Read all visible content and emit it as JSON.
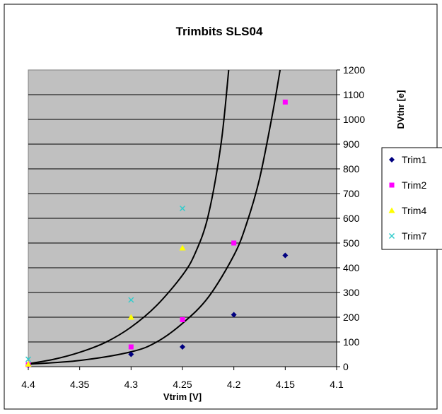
{
  "chart_data": {
    "type": "scatter",
    "title": "Trimbits SLS04",
    "xlabel": "Vtrim [V]",
    "ylabel": "DVthr [e]",
    "x_axis": {
      "reversed": true,
      "range": [
        4.1,
        4.4
      ],
      "ticks": [
        "4.4",
        "4.35",
        "4.3",
        "4.25",
        "4.2",
        "4.15",
        "4.1"
      ],
      "tick_values": [
        4.4,
        4.35,
        4.3,
        4.25,
        4.2,
        4.15,
        4.1
      ]
    },
    "y_axis": {
      "position": "right",
      "range": [
        0,
        1200
      ],
      "ticks": [
        "0",
        "100",
        "200",
        "300",
        "400",
        "500",
        "600",
        "700",
        "800",
        "900",
        "1000",
        "1100",
        "1200"
      ],
      "tick_values": [
        0,
        100,
        200,
        300,
        400,
        500,
        600,
        700,
        800,
        900,
        1000,
        1100,
        1200
      ]
    },
    "grid": "horizontal",
    "legend_position": "right",
    "plot_background": "#c0c0c0",
    "series": [
      {
        "name": "Trim1",
        "marker": "diamond",
        "color": "#000080",
        "x": [
          4.4,
          4.3,
          4.25,
          4.2,
          4.15
        ],
        "y": [
          5,
          50,
          80,
          210,
          450
        ]
      },
      {
        "name": "Trim2",
        "marker": "square",
        "color": "#ff00ff",
        "x": [
          4.4,
          4.3,
          4.25,
          4.2,
          4.15
        ],
        "y": [
          8,
          80,
          190,
          500,
          1070
        ]
      },
      {
        "name": "Trim4",
        "marker": "triangle",
        "color": "#ffff00",
        "x": [
          4.4,
          4.3,
          4.25
        ],
        "y": [
          10,
          200,
          480
        ]
      },
      {
        "name": "Trim7",
        "marker": "x",
        "color": "#33cccc",
        "x": [
          4.4,
          4.3,
          4.25
        ],
        "y": [
          30,
          270,
          640
        ]
      }
    ],
    "fit_curves": [
      {
        "color": "#000000",
        "x": [
          4.4,
          4.375,
          4.35,
          4.325,
          4.3,
          4.275,
          4.25,
          4.2375,
          4.225,
          4.2125,
          4.205
        ],
        "y": [
          12,
          30,
          58,
          98,
          160,
          248,
          370,
          460,
          610,
          900,
          1200
        ]
      },
      {
        "color": "#000000",
        "x": [
          4.4,
          4.35,
          4.3,
          4.275,
          4.25,
          4.225,
          4.2,
          4.1875,
          4.175,
          4.1625,
          4.155
        ],
        "y": [
          10,
          25,
          60,
          100,
          175,
          280,
          450,
          580,
          760,
          1020,
          1200
        ]
      }
    ]
  }
}
